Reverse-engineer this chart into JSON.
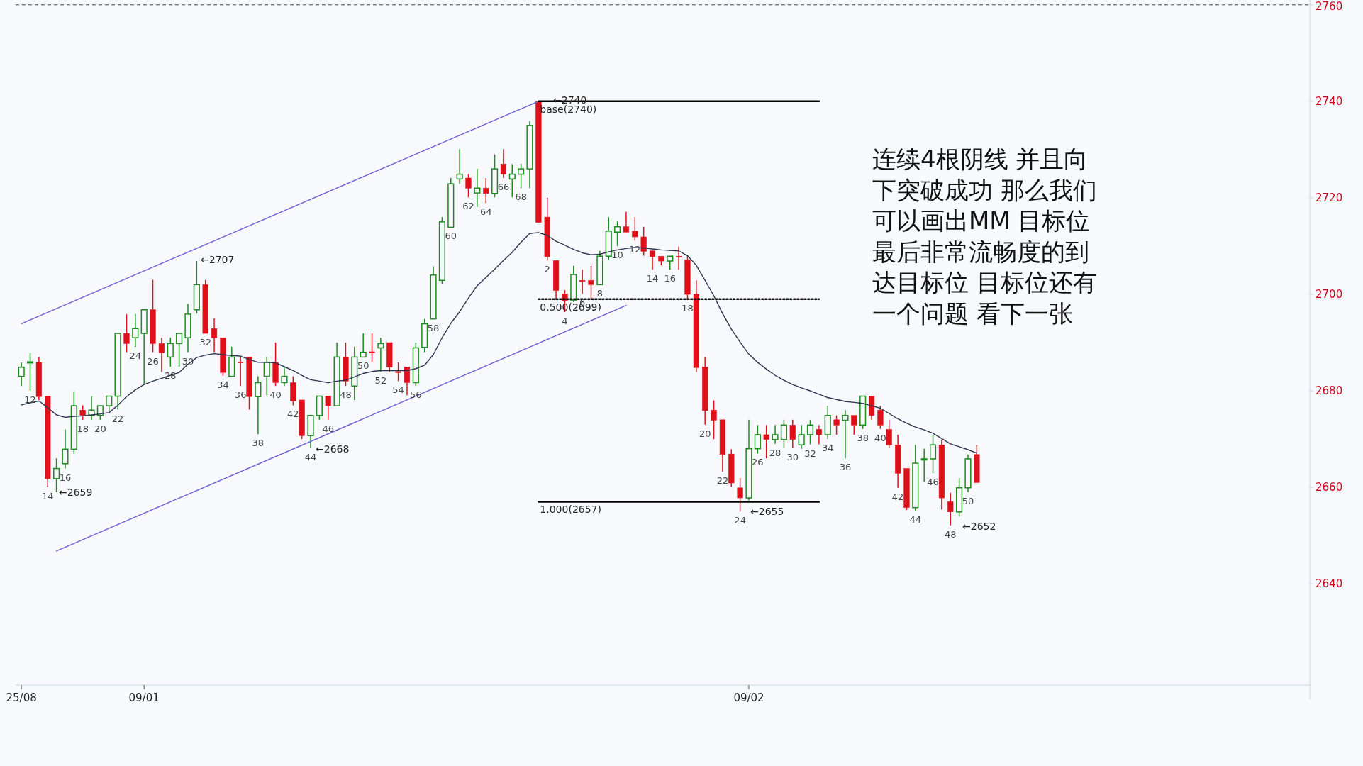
{
  "chart_data": {
    "type": "candlestick",
    "categories": [
      "25/08",
      null,
      null,
      null,
      null,
      null,
      null,
      null,
      null,
      null,
      null,
      null,
      null,
      null,
      "09/01",
      null,
      null,
      null,
      null,
      null,
      null,
      null,
      null,
      null,
      null,
      null,
      null,
      null,
      null,
      null,
      null,
      null,
      null,
      null,
      null,
      null,
      null,
      null,
      null,
      null,
      null,
      null,
      null,
      null,
      null,
      null,
      null,
      null,
      null,
      null,
      null,
      null,
      null,
      null,
      null,
      null,
      null,
      null,
      null,
      null,
      null,
      null,
      null,
      null,
      null,
      null,
      null,
      null,
      null,
      null,
      null,
      null,
      null,
      null,
      null,
      null,
      null,
      null,
      null,
      null,
      null,
      null,
      null,
      "09/02",
      null,
      null,
      null,
      null,
      null,
      null,
      null,
      null,
      null,
      null,
      null,
      null,
      null,
      null,
      null,
      null,
      null,
      null,
      null,
      null,
      null,
      null,
      null,
      null,
      null,
      null
    ],
    "ohlc": [
      [
        2683.0,
        2685.9,
        2681.0,
        2684.9
      ],
      [
        2685.8,
        2687.9,
        2680.0,
        2686.0
      ],
      [
        2685.9,
        2687.0,
        2678.1,
        2678.8
      ],
      [
        2678.9,
        2678.9,
        2660.0,
        2661.8
      ],
      [
        2661.8,
        2666.0,
        2659.0,
        2663.9
      ],
      [
        2664.9,
        2672.0,
        2663.9,
        2667.9
      ],
      [
        2667.9,
        2679.9,
        2666.9,
        2676.9
      ],
      [
        2676.0,
        2677.0,
        2674.0,
        2674.9
      ],
      [
        2674.9,
        2678.9,
        2674.0,
        2676.0
      ],
      [
        2674.9,
        2676.9,
        2674.0,
        2676.9
      ],
      [
        2676.9,
        2678.9,
        2675.9,
        2678.9
      ],
      [
        2678.9,
        2691.9,
        2676.1,
        2691.9
      ],
      [
        2691.9,
        2695.9,
        2688.0,
        2689.8
      ],
      [
        2691.0,
        2695.9,
        2689.1,
        2692.9
      ],
      [
        2691.9,
        2696.8,
        2681.3,
        2696.8
      ],
      [
        2696.8,
        2703.0,
        2688.0,
        2689.8
      ],
      [
        2689.8,
        2691.0,
        2683.9,
        2687.9
      ],
      [
        2687.0,
        2691.0,
        2685.0,
        2689.8
      ],
      [
        2689.8,
        2691.9,
        2685.0,
        2691.9
      ],
      [
        2691.0,
        2698.0,
        2688.0,
        2695.9
      ],
      [
        2696.8,
        2706.9,
        2696.0,
        2702.0
      ],
      [
        2702.0,
        2703.0,
        2691.9,
        2691.9
      ],
      [
        2692.9,
        2695.0,
        2688.0,
        2691.0
      ],
      [
        2691.0,
        2691.0,
        2683.1,
        2683.8
      ],
      [
        2683.0,
        2689.1,
        2683.0,
        2687.0
      ],
      [
        2686.0,
        2687.0,
        2681.0,
        2685.8
      ],
      [
        2687.0,
        2687.0,
        2676.1,
        2678.8
      ],
      [
        2678.8,
        2683.0,
        2671.0,
        2681.7
      ],
      [
        2683.0,
        2687.0,
        2679.1,
        2685.9
      ],
      [
        2685.9,
        2690.0,
        2681.0,
        2681.7
      ],
      [
        2681.7,
        2684.9,
        2681.0,
        2683.0
      ],
      [
        2681.7,
        2683.0,
        2677.0,
        2677.9
      ],
      [
        2678.1,
        2678.1,
        2670.0,
        2670.7
      ],
      [
        2670.7,
        2674.9,
        2668.1,
        2674.9
      ],
      [
        2674.9,
        2678.9,
        2674.0,
        2678.9
      ],
      [
        2678.9,
        2678.9,
        2674.0,
        2676.9
      ],
      [
        2676.9,
        2690.0,
        2676.9,
        2687.0
      ],
      [
        2687.0,
        2690.0,
        2681.0,
        2682.0
      ],
      [
        2681.0,
        2689.1,
        2678.1,
        2687.0
      ],
      [
        2687.0,
        2691.9,
        2687.0,
        2688.0
      ],
      [
        2688.1,
        2691.9,
        2686.0,
        2687.9
      ],
      [
        2688.9,
        2691.0,
        2683.9,
        2689.8
      ],
      [
        2690.0,
        2690.0,
        2683.9,
        2684.9
      ],
      [
        2684.0,
        2685.9,
        2682.0,
        2683.9
      ],
      [
        2684.9,
        2684.9,
        2679.1,
        2681.7
      ],
      [
        2681.7,
        2690.0,
        2681.0,
        2688.9
      ],
      [
        2689.0,
        2694.9,
        2688.0,
        2693.9
      ],
      [
        2694.9,
        2705.8,
        2694.9,
        2704.0
      ],
      [
        2702.9,
        2716.0,
        2702.2,
        2715.0
      ],
      [
        2713.9,
        2724.1,
        2713.9,
        2722.9
      ],
      [
        2723.9,
        2730.1,
        2722.9,
        2724.9
      ],
      [
        2724.1,
        2724.9,
        2720.1,
        2722.0
      ],
      [
        2721.0,
        2726.0,
        2718.1,
        2722.0
      ],
      [
        2722.0,
        2724.1,
        2718.9,
        2720.9
      ],
      [
        2720.9,
        2729.0,
        2720.1,
        2726.0
      ],
      [
        2727.0,
        2730.1,
        2724.1,
        2724.9
      ],
      [
        2723.9,
        2727.0,
        2720.1,
        2724.9
      ],
      [
        2724.9,
        2727.0,
        2722.0,
        2726.0
      ],
      [
        2726.0,
        2735.9,
        2722.0,
        2735.0
      ],
      [
        2740.0,
        2740.0,
        2714.9,
        2714.9
      ],
      [
        2716.0,
        2720.0,
        2707.0,
        2707.8
      ],
      [
        2707.0,
        2707.0,
        2698.9,
        2700.8
      ],
      [
        2700.1,
        2700.9,
        2696.3,
        2698.7
      ],
      [
        2698.8,
        2705.9,
        2698.4,
        2704.1
      ],
      [
        2702.9,
        2705.1,
        2700.1,
        2702.8
      ],
      [
        2702.9,
        2705.9,
        2698.9,
        2702.0
      ],
      [
        2702.0,
        2709.0,
        2702.0,
        2707.9
      ],
      [
        2707.9,
        2716.0,
        2707.1,
        2713.1
      ],
      [
        2712.9,
        2715.1,
        2710.0,
        2714.0
      ],
      [
        2714.0,
        2717.1,
        2712.9,
        2712.9
      ],
      [
        2713.1,
        2716.0,
        2711.1,
        2711.9
      ],
      [
        2711.9,
        2714.0,
        2708.0,
        2708.9
      ],
      [
        2709.0,
        2709.0,
        2705.1,
        2707.8
      ],
      [
        2707.9,
        2707.9,
        2706.0,
        2706.9
      ],
      [
        2706.9,
        2707.9,
        2705.1,
        2707.9
      ],
      [
        2707.9,
        2709.9,
        2705.1,
        2707.8
      ],
      [
        2707.1,
        2707.9,
        2699.0,
        2700.0
      ],
      [
        2700.0,
        2702.9,
        2683.9,
        2684.8
      ],
      [
        2684.9,
        2687.0,
        2673.0,
        2675.9
      ],
      [
        2676.0,
        2678.0,
        2670.0,
        2673.9
      ],
      [
        2674.0,
        2674.0,
        2663.2,
        2666.8
      ],
      [
        2666.9,
        2667.9,
        2660.1,
        2660.9
      ],
      [
        2659.9,
        2661.9,
        2655.0,
        2657.8
      ],
      [
        2657.8,
        2674.0,
        2657.3,
        2668.0
      ],
      [
        2668.0,
        2672.9,
        2667.0,
        2670.9
      ],
      [
        2670.9,
        2672.9,
        2666.0,
        2669.9
      ],
      [
        2669.9,
        2672.9,
        2669.0,
        2670.9
      ],
      [
        2669.9,
        2674.0,
        2668.1,
        2672.9
      ],
      [
        2672.9,
        2674.0,
        2668.1,
        2669.9
      ],
      [
        2668.8,
        2672.9,
        2668.0,
        2670.9
      ],
      [
        2670.9,
        2674.0,
        2668.9,
        2672.9
      ],
      [
        2672.0,
        2672.9,
        2668.9,
        2670.9
      ],
      [
        2670.9,
        2676.9,
        2670.0,
        2674.9
      ],
      [
        2674.0,
        2674.9,
        2670.9,
        2672.9
      ],
      [
        2673.9,
        2676.0,
        2666.0,
        2674.9
      ],
      [
        2674.9,
        2674.9,
        2670.9,
        2672.9
      ],
      [
        2672.9,
        2678.9,
        2672.1,
        2678.9
      ],
      [
        2678.9,
        2678.9,
        2674.0,
        2674.9
      ],
      [
        2676.0,
        2676.9,
        2672.1,
        2672.9
      ],
      [
        2672.0,
        2674.0,
        2668.1,
        2668.8
      ],
      [
        2668.8,
        2670.9,
        2659.9,
        2662.9
      ],
      [
        2663.9,
        2663.9,
        2655.3,
        2655.8
      ],
      [
        2655.8,
        2668.8,
        2655.2,
        2665.0
      ],
      [
        2665.8,
        2668.0,
        2661.1,
        2665.9
      ],
      [
        2665.9,
        2670.9,
        2662.9,
        2668.8
      ],
      [
        2668.8,
        2669.9,
        2655.4,
        2657.8
      ],
      [
        2657.0,
        2658.9,
        2652.1,
        2654.9
      ],
      [
        2654.9,
        2661.9,
        2653.9,
        2659.9
      ],
      [
        2659.9,
        2666.8,
        2659.0,
        2665.9
      ],
      [
        2666.8,
        2668.8,
        2661.0,
        2661.0
      ]
    ],
    "colors": [
      "#1f8a1f",
      "#1f8a1f",
      "#e0101a",
      "#e0101a",
      "#1f8a1f",
      "#1f8a1f",
      "#1f8a1f",
      "#e0101a",
      "#1f8a1f",
      "#1f8a1f",
      "#1f8a1f",
      "#1f8a1f",
      "#e0101a",
      "#1f8a1f",
      "#1f8a1f",
      "#e0101a",
      "#e0101a",
      "#1f8a1f",
      "#1f8a1f",
      "#1f8a1f",
      "#1f8a1f",
      "#e0101a",
      "#e0101a",
      "#e0101a",
      "#1f8a1f",
      "#e0101a",
      "#e0101a",
      "#1f8a1f",
      "#1f8a1f",
      "#e0101a",
      "#1f8a1f",
      "#e0101a",
      "#e0101a",
      "#1f8a1f",
      "#1f8a1f",
      "#e0101a",
      "#1f8a1f",
      "#e0101a",
      "#1f8a1f",
      "#1f8a1f",
      "#e0101a",
      "#1f8a1f",
      "#e0101a",
      "#e0101a",
      "#e0101a",
      "#1f8a1f",
      "#1f8a1f",
      "#1f8a1f",
      "#1f8a1f",
      "#1f8a1f",
      "#1f8a1f",
      "#e0101a",
      "#1f8a1f",
      "#e0101a",
      "#1f8a1f",
      "#e0101a",
      "#1f8a1f",
      "#1f8a1f",
      "#1f8a1f",
      "#e0101a",
      "#e0101a",
      "#e0101a",
      "#e0101a",
      "#1f8a1f",
      "#e0101a",
      "#e0101a",
      "#1f8a1f",
      "#1f8a1f",
      "#1f8a1f",
      "#e0101a",
      "#e0101a",
      "#e0101a",
      "#e0101a",
      "#e0101a",
      "#1f8a1f",
      "#e0101a",
      "#e0101a",
      "#e0101a",
      "#e0101a",
      "#e0101a",
      "#e0101a",
      "#e0101a",
      "#e0101a",
      "#1f8a1f",
      "#1f8a1f",
      "#e0101a",
      "#1f8a1f",
      "#1f8a1f",
      "#e0101a",
      "#1f8a1f",
      "#1f8a1f",
      "#e0101a",
      "#1f8a1f",
      "#e0101a",
      "#1f8a1f",
      "#e0101a",
      "#1f8a1f",
      "#e0101a",
      "#e0101a",
      "#e0101a",
      "#e0101a",
      "#e0101a",
      "#1f8a1f",
      "#1f8a1f",
      "#1f8a1f",
      "#e0101a",
      "#e0101a",
      "#1f8a1f",
      "#1f8a1f",
      "#e0101a"
    ],
    "value_labels": [
      null,
      "12",
      null,
      "14",
      null,
      "16",
      null,
      "18",
      null,
      "20",
      null,
      "22",
      null,
      "24",
      null,
      "26",
      null,
      "28",
      null,
      "30",
      null,
      "32",
      null,
      "34",
      null,
      "36",
      null,
      "38",
      null,
      "40",
      null,
      "42",
      null,
      "44",
      null,
      "46",
      null,
      "48",
      null,
      "50",
      null,
      "52",
      null,
      "54",
      null,
      "56",
      null,
      "58",
      null,
      "60",
      null,
      "62",
      null,
      "64",
      null,
      "66",
      null,
      "68",
      null,
      null,
      "2",
      null,
      "4",
      null,
      "6",
      null,
      "8",
      null,
      "10",
      null,
      "12",
      null,
      "14",
      null,
      "16",
      null,
      "18",
      null,
      "20",
      null,
      "22",
      null,
      "24",
      null,
      "26",
      null,
      "28",
      null,
      "30",
      null,
      "32",
      null,
      "34",
      null,
      "36",
      null,
      "38",
      null,
      "40",
      null,
      "42",
      null,
      "44",
      null,
      "46",
      null,
      "48",
      null,
      "50",
      null
    ],
    "ylim": [
      2619,
      2761
    ],
    "yticks": [
      2640,
      2660,
      2680,
      2700,
      2720,
      2740,
      2760
    ],
    "series": [
      {
        "type": "line",
        "color": "#2b3550",
        "values": [
          2677.1,
          2677.5,
          2677.9,
          2676.5,
          2675.0,
          2674.5,
          2674.7,
          2674.8,
          2675.0,
          2675.2,
          2675.5,
          2677.0,
          2678.8,
          2680.2,
          2681.3,
          2682.0,
          2682.6,
          2683.2,
          2683.8,
          2685.5,
          2686.9,
          2687.4,
          2687.7,
          2687.5,
          2687.3,
          2687.2,
          2686.5,
          2685.9,
          2685.9,
          2685.8,
          2685.0,
          2684.2,
          2683.2,
          2682.3,
          2682.0,
          2681.7,
          2682.0,
          2682.2,
          2682.9,
          2683.6,
          2684.0,
          2684.2,
          2684.2,
          2684.2,
          2684.2,
          2684.6,
          2685.3,
          2687.5,
          2691.0,
          2694.0,
          2696.4,
          2699.2,
          2701.8,
          2703.5,
          2705.2,
          2707.0,
          2708.7,
          2710.8,
          2712.6,
          2712.8,
          2712.2,
          2711.0,
          2710.2,
          2709.3,
          2708.6,
          2708.2,
          2708.3,
          2708.8,
          2709.2,
          2709.5,
          2709.7,
          2709.6,
          2709.4,
          2709.2,
          2709.1,
          2709.0,
          2708.0,
          2706.0,
          2702.9,
          2699.7,
          2696.0,
          2692.8,
          2690.1,
          2687.6,
          2685.9,
          2684.5,
          2683.2,
          2682.2,
          2681.3,
          2680.6,
          2680.0,
          2679.3,
          2678.6,
          2678.2,
          2677.8,
          2677.6,
          2677.4,
          2676.9,
          2676.4,
          2675.3,
          2674.2,
          2673.3,
          2672.5,
          2671.9,
          2671.2,
          2670.1,
          2669.0,
          2668.4,
          2667.8,
          2667.1
        ]
      },
      {
        "type": "line",
        "color": "#6b5fd6",
        "values": [
          2693.9,
          null,
          null,
          null,
          null,
          null,
          null,
          null,
          null,
          null,
          null,
          null,
          null,
          null,
          null,
          null,
          null,
          null,
          null,
          null,
          null,
          null,
          null,
          null,
          null,
          null,
          null,
          null,
          null,
          null,
          null,
          null,
          null,
          null,
          null,
          null,
          null,
          null,
          null,
          null,
          null,
          null,
          null,
          null,
          null,
          null,
          null,
          null,
          null,
          null,
          null,
          null,
          null,
          null,
          null,
          null,
          null,
          null,
          null,
          2740,
          null,
          null,
          null,
          null,
          null,
          null,
          null,
          null,
          null,
          null,
          null,
          null,
          null,
          null,
          null,
          null,
          null,
          null,
          null,
          null,
          null,
          null,
          null,
          null,
          null,
          null,
          null,
          null,
          null,
          null,
          null,
          null,
          null,
          null,
          null,
          null,
          null,
          null,
          null,
          null,
          null,
          null,
          null,
          null,
          null,
          null,
          null,
          null,
          null,
          null
        ]
      },
      {
        "type": "line",
        "color": "#6b5fd6",
        "values": [
          null,
          null,
          null,
          null,
          2646.8,
          null,
          null,
          null,
          null,
          null,
          null,
          null,
          null,
          null,
          null,
          null,
          null,
          null,
          null,
          null,
          null,
          null,
          null,
          null,
          null,
          null,
          null,
          null,
          null,
          null,
          null,
          null,
          null,
          null,
          null,
          null,
          null,
          null,
          null,
          null,
          null,
          null,
          null,
          null,
          null,
          null,
          null,
          null,
          null,
          null,
          null,
          null,
          null,
          null,
          null,
          null,
          null,
          null,
          null,
          null,
          null,
          null,
          null,
          null,
          null,
          null,
          null,
          null,
          null,
          2697.7,
          null,
          null,
          null,
          null,
          null,
          null,
          null,
          null,
          null,
          null,
          null,
          null,
          null,
          null,
          null,
          null,
          null,
          null,
          null,
          null,
          null,
          null,
          null,
          null,
          null,
          null,
          null,
          null,
          null,
          null,
          null,
          null,
          null,
          null,
          null,
          null,
          null,
          null,
          null,
          null
        ]
      },
      {
        "type": "line",
        "name": "base(2740)",
        "color": "#000000",
        "values": [
          null,
          null,
          null,
          null,
          null,
          null,
          null,
          null,
          null,
          null,
          null,
          null,
          null,
          null,
          null,
          null,
          null,
          null,
          null,
          null,
          null,
          null,
          null,
          null,
          null,
          null,
          null,
          null,
          null,
          null,
          null,
          null,
          null,
          null,
          null,
          null,
          null,
          null,
          null,
          null,
          null,
          null,
          null,
          null,
          null,
          null,
          null,
          null,
          null,
          null,
          null,
          null,
          null,
          null,
          null,
          null,
          null,
          null,
          null,
          2740,
          null,
          null,
          null,
          null,
          null,
          null,
          null,
          null,
          null,
          null,
          null,
          null,
          null,
          null,
          null,
          null,
          null,
          null,
          null,
          null,
          null,
          null,
          null,
          null,
          null,
          null,
          null,
          null,
          null,
          null,
          null,
          2740,
          null,
          null,
          null,
          null,
          null,
          null,
          null,
          null,
          null,
          null,
          null,
          null,
          null,
          null,
          null,
          null,
          null,
          null
        ]
      },
      {
        "type": "line",
        "name": "0.500(2699)",
        "color": "#000000",
        "line_style": "dotted",
        "values": [
          null,
          null,
          null,
          null,
          null,
          null,
          null,
          null,
          null,
          null,
          null,
          null,
          null,
          null,
          null,
          null,
          null,
          null,
          null,
          null,
          null,
          null,
          null,
          null,
          null,
          null,
          null,
          null,
          null,
          null,
          null,
          null,
          null,
          null,
          null,
          null,
          null,
          null,
          null,
          null,
          null,
          null,
          null,
          null,
          null,
          null,
          null,
          null,
          null,
          null,
          null,
          null,
          null,
          null,
          null,
          null,
          null,
          null,
          null,
          2699,
          null,
          null,
          null,
          null,
          null,
          null,
          null,
          null,
          null,
          null,
          null,
          null,
          null,
          null,
          null,
          null,
          null,
          null,
          null,
          null,
          null,
          null,
          null,
          null,
          null,
          null,
          null,
          null,
          null,
          null,
          null,
          2699,
          null,
          null,
          null,
          null,
          null,
          null,
          null,
          null,
          null,
          null,
          null,
          null,
          null,
          null,
          null,
          null,
          null,
          null
        ]
      },
      {
        "type": "line",
        "name": "1.000(2657)",
        "color": "#000000",
        "values": [
          null,
          null,
          null,
          null,
          null,
          null,
          null,
          null,
          null,
          null,
          null,
          null,
          null,
          null,
          null,
          null,
          null,
          null,
          null,
          null,
          null,
          null,
          null,
          null,
          null,
          null,
          null,
          null,
          null,
          null,
          null,
          null,
          null,
          null,
          null,
          null,
          null,
          null,
          null,
          null,
          null,
          null,
          null,
          null,
          null,
          null,
          null,
          null,
          null,
          null,
          null,
          null,
          null,
          null,
          null,
          null,
          null,
          null,
          null,
          2657,
          null,
          null,
          null,
          null,
          null,
          null,
          null,
          null,
          null,
          null,
          null,
          null,
          null,
          null,
          null,
          null,
          null,
          null,
          null,
          null,
          null,
          null,
          null,
          null,
          null,
          null,
          null,
          null,
          null,
          null,
          null,
          2657,
          null,
          null,
          null,
          null,
          null,
          null,
          null,
          null,
          null,
          null,
          null,
          null,
          null,
          null,
          null,
          null,
          null,
          null
        ]
      }
    ],
    "ref_lines": [
      {
        "axis": "y",
        "value": 2760,
        "line_style": "dashed",
        "color": "#444444"
      }
    ],
    "annotations": [
      "←2659",
      "←2707",
      "←2668",
      "←2740",
      "←2655",
      "←2652",
      "连续4根阴线 并且向下突破成功 那么我们可以画出MM 目标位最后非常流畅度的到达目标位 目标位还有一个问题 看下一张"
    ]
  }
}
